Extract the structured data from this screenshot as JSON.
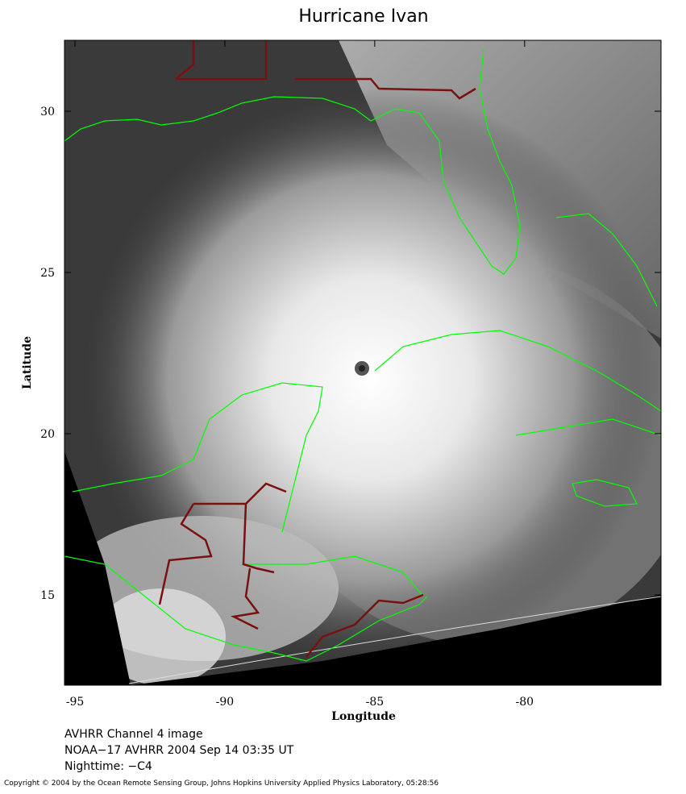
{
  "map": {
    "title": "Hurricane Ivan",
    "x_label": "Longitude",
    "y_label": "Latitude",
    "xlim": [
      -95.35,
      -75.45
    ],
    "ylim": [
      12.2,
      32.2
    ],
    "xticks": [
      -95,
      -90,
      -85,
      -80
    ],
    "yticks": [
      15,
      20,
      25,
      30
    ]
  },
  "caption": [
    "AVHRR Channel 4 image",
    "NOAA−17 AVHRR 2004 Sep 14 03:35 UT",
    "Nighttime: −C4"
  ],
  "copyright": "Copyright © 2004 by the Ocean Remote Sensing Group, Johns Hopkins University Applied Physics Laboratory, 05:28:56"
}
